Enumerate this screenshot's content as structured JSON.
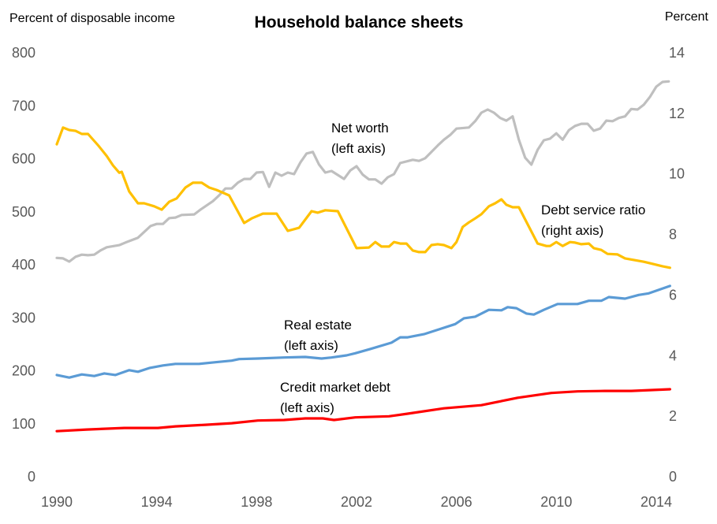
{
  "chart_data": {
    "type": "line",
    "title": "Household balance sheets",
    "ylabel_left": "Percent of disposable income",
    "ylabel_right": "Percent",
    "xlim": [
      1990,
      2014.6
    ],
    "ylim_left": [
      0,
      800
    ],
    "ylim_right": [
      0,
      14
    ],
    "x_ticks": [
      "1990",
      "1994",
      "1998",
      "2002",
      "2006",
      "2010",
      "2014"
    ],
    "y_ticks_left": [
      "0",
      "100",
      "200",
      "300",
      "400",
      "500",
      "600",
      "700",
      "800"
    ],
    "y_ticks_right": [
      "0",
      "2",
      "4",
      "6",
      "8",
      "10",
      "12",
      "14"
    ],
    "grid": false,
    "legend": "none",
    "series": [
      {
        "name": "Net worth",
        "axis": "left",
        "color": "#bfbfbf",
        "label": [
          "Net worth",
          "(left axis)"
        ],
        "x": [
          1990.0,
          1990.25,
          1990.5,
          1990.75,
          1991.0,
          1991.25,
          1991.5,
          1991.75,
          1992.0,
          1992.5,
          1992.75,
          1993.25,
          1993.75,
          1994.0,
          1994.25,
          1994.5,
          1994.75,
          1995.0,
          1995.5,
          1995.75,
          1996.25,
          1996.5,
          1996.75,
          1997.0,
          1997.25,
          1997.5,
          1997.75,
          1998.0,
          1998.25,
          1998.5,
          1998.75,
          1999.0,
          1999.25,
          1999.5,
          1999.75,
          2000.0,
          2000.25,
          2000.5,
          2000.75,
          2001.0,
          2001.5,
          2001.75,
          2002.0,
          2002.25,
          2002.5,
          2002.75,
          2003.0,
          2003.25,
          2003.5,
          2003.75,
          2004.25,
          2004.5,
          2004.75,
          2005.0,
          2005.25,
          2005.5,
          2005.75,
          2006.0,
          2006.5,
          2006.75,
          2007.0,
          2007.25,
          2007.5,
          2007.75,
          2008.0,
          2008.25,
          2008.5,
          2008.75,
          2009.0,
          2009.25,
          2009.5,
          2009.75,
          2010.0,
          2010.25,
          2010.5,
          2010.75,
          2011.0,
          2011.25,
          2011.5,
          2011.75,
          2012.0,
          2012.25,
          2012.5,
          2012.75,
          2013.0,
          2013.25,
          2013.5,
          2013.75,
          2014.0,
          2014.25,
          2014.5
        ],
        "y": [
          413,
          412,
          406,
          415,
          419,
          418,
          419,
          427,
          433,
          437,
          442,
          451,
          473,
          477,
          477,
          488,
          489,
          494,
          495,
          504,
          520,
          531,
          544,
          544,
          555,
          562,
          562,
          574,
          575,
          547,
          574,
          568,
          574,
          571,
          593,
          610,
          613,
          589,
          574,
          577,
          562,
          578,
          586,
          570,
          561,
          561,
          553,
          565,
          571,
          592,
          598,
          596,
          601,
          613,
          625,
          636,
          645,
          657,
          659,
          671,
          687,
          693,
          687,
          677,
          672,
          680,
          636,
          602,
          589,
          617,
          635,
          638,
          648,
          636,
          654,
          662,
          666,
          666,
          653,
          657,
          672,
          671,
          677,
          680,
          694,
          693,
          702,
          717,
          736,
          745,
          746
        ]
      },
      {
        "name": "Debt service ratio",
        "axis": "right",
        "color": "#ffc000",
        "label": [
          "Debt service ratio",
          "(right axis)"
        ],
        "x": [
          1990.0,
          1990.25,
          1990.5,
          1990.75,
          1991.0,
          1991.25,
          1991.67,
          1992.0,
          1992.25,
          1992.5,
          1992.6,
          1992.9,
          1993.25,
          1993.5,
          1993.9,
          1994.2,
          1994.5,
          1994.8,
          1995.15,
          1995.45,
          1995.8,
          1996.1,
          1996.4,
          1996.9,
          1997.5,
          1997.8,
          1998.25,
          1998.8,
          1999.25,
          1999.7,
          2000.2,
          2000.45,
          2000.75,
          2001.25,
          2002.0,
          2002.5,
          2002.75,
          2003.0,
          2003.3,
          2003.5,
          2003.75,
          2004.0,
          2004.25,
          2004.5,
          2004.75,
          2005.0,
          2005.25,
          2005.5,
          2005.8,
          2006.0,
          2006.25,
          2006.5,
          2006.75,
          2007.0,
          2007.3,
          2007.55,
          2007.8,
          2008.0,
          2008.25,
          2008.5,
          2009.25,
          2009.6,
          2009.75,
          2010.0,
          2010.25,
          2010.55,
          2010.75,
          2011.0,
          2011.3,
          2011.5,
          2011.8,
          2012.05,
          2012.45,
          2012.75,
          2013.5,
          2013.85,
          2014.25,
          2014.55
        ],
        "y": [
          10.98,
          11.53,
          11.45,
          11.42,
          11.32,
          11.32,
          10.93,
          10.59,
          10.28,
          10.04,
          10.07,
          9.42,
          9.03,
          9.03,
          8.93,
          8.82,
          9.08,
          9.19,
          9.55,
          9.71,
          9.71,
          9.55,
          9.47,
          9.29,
          8.38,
          8.53,
          8.69,
          8.69,
          8.12,
          8.22,
          8.77,
          8.72,
          8.8,
          8.77,
          7.55,
          7.57,
          7.75,
          7.6,
          7.6,
          7.75,
          7.7,
          7.7,
          7.47,
          7.42,
          7.42,
          7.65,
          7.68,
          7.65,
          7.55,
          7.75,
          8.25,
          8.4,
          8.53,
          8.67,
          8.93,
          9.03,
          9.16,
          8.98,
          8.9,
          8.9,
          7.7,
          7.62,
          7.62,
          7.75,
          7.62,
          7.75,
          7.73,
          7.68,
          7.7,
          7.55,
          7.49,
          7.36,
          7.34,
          7.21,
          7.1,
          7.03,
          6.95,
          6.9
        ]
      },
      {
        "name": "Real estate",
        "axis": "left",
        "color": "#5b9bd5",
        "label": [
          "Real estate",
          "(left axis)"
        ],
        "x": [
          1990.0,
          1990.5,
          1991.0,
          1991.5,
          1991.9,
          1992.35,
          1992.9,
          1993.25,
          1993.7,
          1994.25,
          1994.75,
          1995.7,
          1996.35,
          1997.0,
          1997.3,
          1998.05,
          1999.1,
          1999.95,
          2000.6,
          2001.0,
          2001.6,
          2001.95,
          2002.55,
          2003.4,
          2003.75,
          2004.05,
          2004.7,
          2005.3,
          2005.95,
          2006.3,
          2006.75,
          2007.3,
          2007.8,
          2008.05,
          2008.4,
          2008.8,
          2009.1,
          2009.5,
          2010.05,
          2010.85,
          2011.3,
          2011.8,
          2012.1,
          2012.75,
          2013.3,
          2013.7,
          2014.55
        ],
        "y": [
          192,
          187,
          193,
          190,
          195,
          192,
          201,
          198,
          205,
          210,
          213,
          213,
          216,
          219,
          222,
          223,
          225,
          226,
          223,
          225,
          229,
          233,
          241,
          253,
          263,
          263,
          269,
          278,
          288,
          299,
          302,
          315,
          314,
          320,
          318,
          308,
          306,
          315,
          326,
          326,
          332,
          332,
          339,
          336,
          343,
          346,
          360
        ]
      },
      {
        "name": "Credit market debt",
        "axis": "left",
        "color": "#ff0000",
        "label": [
          "Credit market debt",
          "(left axis)"
        ],
        "x": [
          1990.0,
          1991.2,
          1992.7,
          1994.05,
          1994.75,
          1995.95,
          1997.0,
          1998.05,
          1999.1,
          1999.95,
          2000.65,
          2001.1,
          2001.95,
          2003.3,
          2004.05,
          2005.5,
          2007.0,
          2008.45,
          2009.8,
          2010.85,
          2011.95,
          2013.0,
          2014.55
        ],
        "y": [
          86,
          89,
          92,
          92,
          95,
          98,
          101,
          106,
          107,
          110,
          110,
          107,
          112,
          114,
          119,
          129,
          135,
          149,
          158,
          161,
          162,
          162,
          165
        ]
      }
    ]
  }
}
